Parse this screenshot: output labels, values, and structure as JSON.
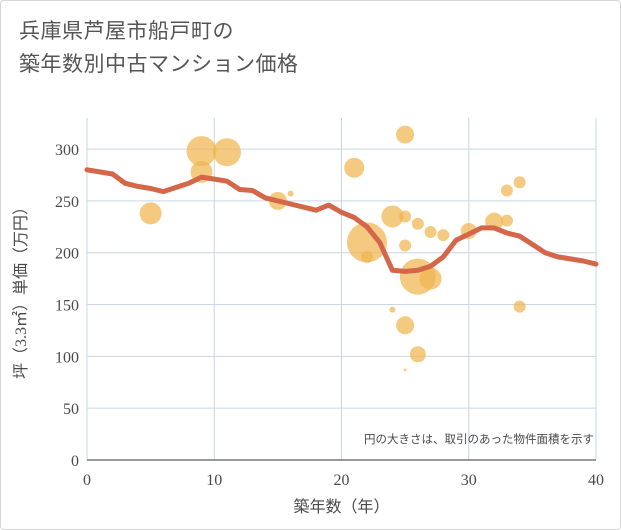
{
  "chart_data": {
    "type": "scatter",
    "title_line1": "兵庫県芦屋市船戸町の",
    "title_line2": "築年数別中古マンション価格",
    "xlabel": "築年数（年）",
    "ylabel": "坪（3.3㎡）単価（万円）",
    "note": "円の大きさは、取引のあった物件面積を示す",
    "xlim": [
      0,
      40
    ],
    "ylim": [
      0,
      330
    ],
    "xticks": [
      "0",
      "10",
      "20",
      "30",
      "40"
    ],
    "yticks": [
      "0",
      "50",
      "100",
      "150",
      "200",
      "250",
      "300"
    ],
    "grid": true,
    "colors": {
      "bubble": "#f0b54f",
      "line": "#d4664a",
      "grid": "#c9d6e3"
    },
    "scatter": [
      {
        "x": 5,
        "y": 238,
        "s": 11
      },
      {
        "x": 9,
        "y": 298,
        "s": 15
      },
      {
        "x": 9,
        "y": 278,
        "s": 11
      },
      {
        "x": 11,
        "y": 297,
        "s": 14
      },
      {
        "x": 15,
        "y": 250,
        "s": 9
      },
      {
        "x": 16,
        "y": 257,
        "s": 3
      },
      {
        "x": 21,
        "y": 282,
        "s": 10
      },
      {
        "x": 22,
        "y": 210,
        "s": 20
      },
      {
        "x": 22,
        "y": 196,
        "s": 6
      },
      {
        "x": 24,
        "y": 235,
        "s": 11
      },
      {
        "x": 24,
        "y": 145,
        "s": 3
      },
      {
        "x": 25,
        "y": 314,
        "s": 9
      },
      {
        "x": 25,
        "y": 235,
        "s": 6
      },
      {
        "x": 25,
        "y": 207,
        "s": 6
      },
      {
        "x": 25,
        "y": 130,
        "s": 9
      },
      {
        "x": 25,
        "y": 87,
        "s": 1.5
      },
      {
        "x": 26,
        "y": 228,
        "s": 6
      },
      {
        "x": 26,
        "y": 177,
        "s": 18
      },
      {
        "x": 26,
        "y": 102,
        "s": 8
      },
      {
        "x": 27,
        "y": 220,
        "s": 6
      },
      {
        "x": 27,
        "y": 175,
        "s": 11
      },
      {
        "x": 28,
        "y": 217,
        "s": 6
      },
      {
        "x": 30,
        "y": 221,
        "s": 8
      },
      {
        "x": 32,
        "y": 230,
        "s": 9
      },
      {
        "x": 33,
        "y": 260,
        "s": 6
      },
      {
        "x": 33,
        "y": 231,
        "s": 6
      },
      {
        "x": 34,
        "y": 268,
        "s": 6
      },
      {
        "x": 34,
        "y": 148,
        "s": 6
      }
    ],
    "line": {
      "x": [
        0,
        1,
        2,
        3,
        4,
        5,
        6,
        7,
        8,
        9,
        10,
        11,
        12,
        13,
        14,
        15,
        16,
        17,
        18,
        19,
        20,
        21,
        22,
        23,
        24,
        25,
        26,
        27,
        28,
        29,
        30,
        31,
        32,
        33,
        34,
        35,
        36,
        37,
        38,
        39,
        40
      ],
      "y": [
        280,
        278,
        276,
        267,
        264,
        262,
        259,
        263,
        267,
        273,
        271,
        269,
        261,
        260,
        253,
        250,
        247,
        244,
        241,
        246,
        239,
        234,
        225,
        210,
        183,
        182,
        183,
        187,
        196,
        212,
        218,
        224,
        224,
        219,
        216,
        208,
        200,
        196,
        194,
        192,
        189
      ]
    }
  }
}
